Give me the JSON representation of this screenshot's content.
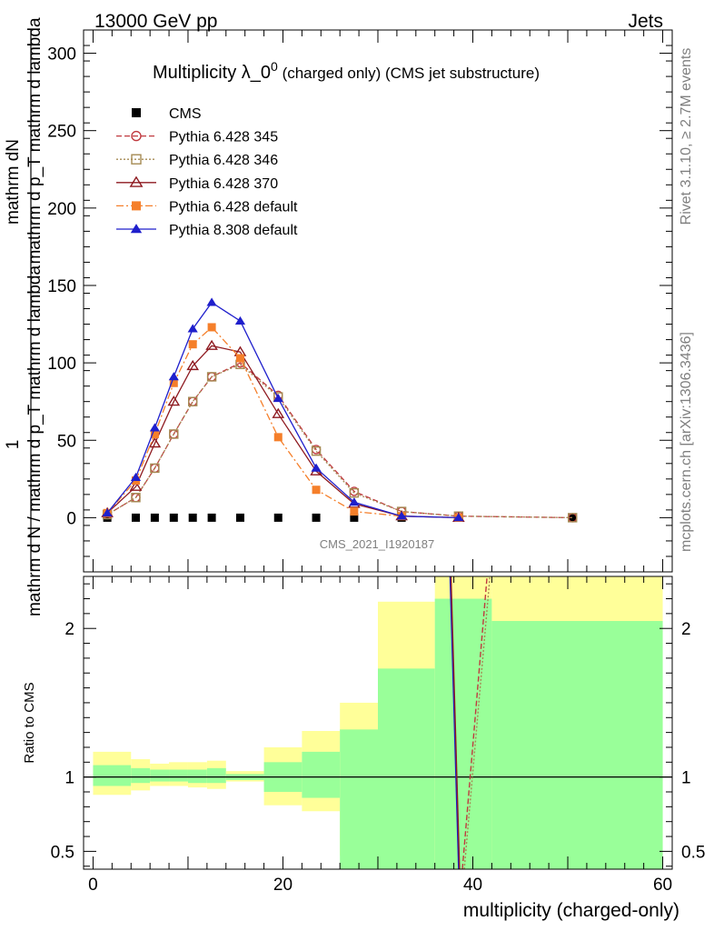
{
  "header": {
    "left": "13000 GeV pp",
    "right": "Jets"
  },
  "side_labels": {
    "rivet": "Rivet 3.1.10, ≥ 2.7M events",
    "mcplots": "mcplots.cern.ch [arXiv:1306.3436]"
  },
  "main_plot": {
    "title_main": "Multiplicity λ_0",
    "title_sup": "0",
    "title_tail": " (charged only) (CMS jet substructure)",
    "ylabel_top": "1",
    "ylabel_num": "mathrm dN",
    "ylabel_num_sub": "mathrm d p_T mathrm d lambda",
    "ylabel_den": "mathrm d N / mathrm d p_T mathrm d lambda",
    "analysis_id": "CMS_2021_I1920187"
  },
  "ratio_plot": {
    "ylabel": "Ratio to CMS"
  },
  "xlabel": "multiplicity (charged-only)",
  "colors": {
    "p345": "#c0393f",
    "p346": "#a58a53",
    "p370": "#8e1a20",
    "p6def": "#f57f2a",
    "p8def": "#1f1fcc",
    "band_inner": "#99ff99",
    "band_outer": "#ffff99"
  },
  "chart_data": {
    "type": "line",
    "xlim": [
      -1,
      61
    ],
    "main": {
      "ylim": [
        -35,
        315
      ],
      "yticks": [
        0,
        50,
        100,
        150,
        200,
        250,
        300
      ],
      "legend_position": "top-left",
      "series": [
        {
          "key": "cms",
          "name": "CMS",
          "marker": "square-filled",
          "x": [
            1.5,
            4.5,
            6.5,
            8.5,
            10.5,
            12.5,
            15.5,
            19.5,
            23.5,
            27.5,
            32.5,
            38.5,
            50.5
          ],
          "values": [
            0,
            0,
            0,
            0,
            0,
            0,
            0,
            0,
            0,
            0,
            0,
            0,
            0
          ]
        },
        {
          "key": "p345",
          "name": "Pythia 6.428 345",
          "marker": "circle-open",
          "dash": "6,3",
          "x": [
            1.5,
            4.5,
            6.5,
            8.5,
            10.5,
            12.5,
            15.5,
            19.5,
            23.5,
            27.5,
            32.5,
            38.5,
            50.5
          ],
          "values": [
            2,
            13,
            32,
            54,
            75,
            91,
            100,
            79,
            44,
            17,
            4,
            1,
            0
          ]
        },
        {
          "key": "p346",
          "name": "Pythia 6.428 346",
          "marker": "square-open",
          "dash": "2,2",
          "x": [
            1.5,
            4.5,
            6.5,
            8.5,
            10.5,
            12.5,
            15.5,
            19.5,
            23.5,
            27.5,
            32.5,
            38.5,
            50.5
          ],
          "values": [
            2,
            13,
            32,
            54,
            75,
            91,
            99,
            78,
            43,
            16,
            4,
            1,
            0
          ]
        },
        {
          "key": "p370",
          "name": "Pythia 6.428 370",
          "marker": "triangle-open",
          "dash": "",
          "x": [
            1.5,
            4.5,
            6.5,
            8.5,
            10.5,
            12.5,
            15.5,
            19.5,
            23.5,
            27.5,
            32.5,
            38.5
          ],
          "values": [
            3,
            20,
            48,
            75,
            98,
            111,
            107,
            67,
            30,
            9,
            1,
            0
          ]
        },
        {
          "key": "p6def",
          "name": "Pythia 6.428 default",
          "marker": "square-filled",
          "dash": "8,3,2,3",
          "x": [
            1.5,
            4.5,
            6.5,
            8.5,
            10.5,
            12.5,
            15.5,
            19.5,
            23.5,
            27.5,
            32.5,
            38.5
          ],
          "values": [
            3,
            24,
            54,
            87,
            112,
            123,
            103,
            52,
            18,
            4,
            1,
            0
          ]
        },
        {
          "key": "p8def",
          "name": "Pythia 8.308 default",
          "marker": "triangle-filled",
          "dash": "",
          "x": [
            1.5,
            4.5,
            6.5,
            8.5,
            10.5,
            12.5,
            15.5,
            19.5,
            23.5,
            27.5,
            32.5,
            38.5
          ],
          "values": [
            3,
            26,
            58,
            91,
            122,
            139,
            127,
            77,
            32,
            10,
            1,
            0
          ]
        }
      ]
    },
    "ratio": {
      "ylim": [
        0.38,
        2.35
      ],
      "yticks": [
        0.5,
        1,
        2
      ],
      "bands": [
        {
          "x0": 0,
          "x1": 4,
          "inner": [
            0.94,
            1.08
          ],
          "outer": [
            0.88,
            1.17
          ]
        },
        {
          "x0": 4,
          "x1": 6,
          "inner": [
            0.96,
            1.06
          ],
          "outer": [
            0.91,
            1.12
          ]
        },
        {
          "x0": 6,
          "x1": 8,
          "inner": [
            0.97,
            1.05
          ],
          "outer": [
            0.94,
            1.09
          ]
        },
        {
          "x0": 8,
          "x1": 10,
          "inner": [
            0.97,
            1.05
          ],
          "outer": [
            0.94,
            1.1
          ]
        },
        {
          "x0": 10,
          "x1": 12,
          "inner": [
            0.96,
            1.05
          ],
          "outer": [
            0.93,
            1.1
          ]
        },
        {
          "x0": 12,
          "x1": 14,
          "inner": [
            0.96,
            1.06
          ],
          "outer": [
            0.92,
            1.11
          ]
        },
        {
          "x0": 14,
          "x1": 18,
          "inner": [
            0.98,
            1.02
          ],
          "outer": [
            0.97,
            1.04
          ]
        },
        {
          "x0": 18,
          "x1": 22,
          "inner": [
            0.9,
            1.1
          ],
          "outer": [
            0.81,
            1.2
          ]
        },
        {
          "x0": 22,
          "x1": 26,
          "inner": [
            0.86,
            1.17
          ],
          "outer": [
            0.77,
            1.31
          ]
        },
        {
          "x0": 26,
          "x1": 30,
          "inner": [
            0.38,
            1.32
          ],
          "outer": [
            0.47,
            1.5
          ]
        },
        {
          "x0": 30,
          "x1": 36,
          "inner": [
            0.38,
            1.73
          ],
          "outer": [
            0.38,
            2.18
          ]
        },
        {
          "x0": 36,
          "x1": 42,
          "inner": [
            0.38,
            2.2
          ],
          "outer": [
            0.38,
            2.35
          ]
        },
        {
          "x0": 42,
          "x1": 60,
          "inner": [
            0.38,
            2.05
          ],
          "outer": [
            0.38,
            2.35
          ]
        }
      ],
      "lines": [
        {
          "key": "p8def",
          "x": [
            37.6,
            38.5
          ],
          "values": [
            2.35,
            0.38
          ]
        },
        {
          "key": "p370",
          "x": [
            37.7,
            38.6
          ],
          "values": [
            2.35,
            0.38
          ]
        },
        {
          "key": "p345",
          "x": [
            38.9,
            41.5
          ],
          "values": [
            0.38,
            2.35
          ]
        },
        {
          "key": "p346",
          "x": [
            39.1,
            41.8
          ],
          "values": [
            0.38,
            2.35
          ]
        }
      ],
      "reference": 1
    },
    "xticks": [
      0,
      20,
      40,
      60
    ]
  }
}
